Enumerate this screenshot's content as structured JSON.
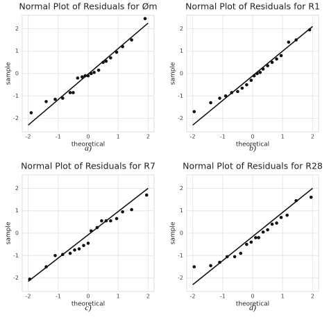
{
  "chart_data": [
    {
      "type": "scatter",
      "title": "Normal Plot of Residuals for Øm",
      "x_label": "theoretical",
      "y_label": "sample",
      "caption": "a)",
      "xlim": [
        -2.2,
        2.2
      ],
      "ylim": [
        -2.6,
        2.6
      ],
      "xticks": [
        -2,
        -1,
        0,
        1,
        2
      ],
      "yticks": [
        -2,
        -1,
        0,
        1,
        2
      ],
      "grid": true,
      "color": "#111111",
      "x": [
        -1.9,
        -1.4,
        -1.1,
        -0.85,
        -0.6,
        -0.5,
        -0.35,
        -0.2,
        -0.1,
        0.0,
        0.1,
        0.2,
        0.35,
        0.5,
        0.6,
        0.75,
        0.95,
        1.15,
        1.45,
        1.9
      ],
      "values": [
        -1.75,
        -1.25,
        -1.15,
        -1.1,
        -0.85,
        -0.85,
        -0.2,
        -0.15,
        -0.1,
        -0.1,
        0.0,
        0.05,
        0.15,
        0.5,
        0.55,
        0.7,
        0.95,
        1.2,
        1.5,
        2.45
      ],
      "fit_line": {
        "x": [
          -2.0,
          2.0
        ],
        "y": [
          -2.3,
          2.25
        ]
      }
    },
    {
      "type": "scatter",
      "title": "Normal Plot of Residuals for R1",
      "x_label": "theoretical",
      "y_label": "sample",
      "caption": "b)",
      "xlim": [
        -2.2,
        2.2
      ],
      "ylim": [
        -2.6,
        2.6
      ],
      "xticks": [
        -2,
        -1,
        0,
        1,
        2
      ],
      "yticks": [
        -2,
        -1,
        0,
        1,
        2
      ],
      "grid": true,
      "color": "#111111",
      "x": [
        -1.95,
        -1.4,
        -1.1,
        -0.9,
        -0.7,
        -0.5,
        -0.35,
        -0.2,
        -0.05,
        0.05,
        0.15,
        0.25,
        0.35,
        0.5,
        0.65,
        0.8,
        0.95,
        1.2,
        1.45,
        1.9
      ],
      "values": [
        -1.7,
        -1.3,
        -1.1,
        -1.0,
        -0.85,
        -0.8,
        -0.65,
        -0.5,
        -0.3,
        -0.1,
        0.0,
        0.05,
        0.2,
        0.35,
        0.5,
        0.65,
        0.8,
        1.4,
        1.5,
        1.95
      ],
      "fit_line": {
        "x": [
          -2.0,
          2.0
        ],
        "y": [
          -2.3,
          2.1
        ]
      }
    },
    {
      "type": "scatter",
      "title": "Normal Plot of Residuals for R7",
      "x_label": "theoretical",
      "y_label": "sample",
      "caption": "c)",
      "xlim": [
        -2.2,
        2.2
      ],
      "ylim": [
        -2.6,
        2.6
      ],
      "xticks": [
        -2,
        -1,
        0,
        1,
        2
      ],
      "yticks": [
        -2,
        -1,
        0,
        1,
        2
      ],
      "grid": true,
      "color": "#111111",
      "x": [
        -1.95,
        -1.4,
        -1.1,
        -0.85,
        -0.6,
        -0.45,
        -0.3,
        -0.15,
        0.0,
        0.1,
        0.3,
        0.45,
        0.6,
        0.75,
        0.95,
        1.15,
        1.45,
        1.95
      ],
      "values": [
        -2.05,
        -1.5,
        -1.0,
        -0.95,
        -0.9,
        -0.75,
        -0.7,
        -0.55,
        -0.45,
        0.1,
        0.25,
        0.55,
        0.55,
        0.55,
        0.65,
        0.95,
        1.05,
        1.7
      ],
      "fit_line": {
        "x": [
          -2.0,
          2.0
        ],
        "y": [
          -2.15,
          2.0
        ]
      }
    },
    {
      "type": "scatter",
      "title": "Normal Plot of Residuals for R28",
      "x_label": "theoretical",
      "y_label": "sample",
      "caption": "d)",
      "xlim": [
        -2.2,
        2.2
      ],
      "ylim": [
        -2.6,
        2.6
      ],
      "xticks": [
        -2,
        -1,
        0,
        1,
        2
      ],
      "yticks": [
        -2,
        -1,
        0,
        1,
        2
      ],
      "grid": true,
      "color": "#111111",
      "x": [
        -1.95,
        -1.4,
        -1.1,
        -0.85,
        -0.6,
        -0.4,
        -0.2,
        -0.05,
        0.1,
        0.2,
        0.35,
        0.5,
        0.65,
        0.8,
        0.95,
        1.15,
        1.45,
        1.95
      ],
      "values": [
        -1.5,
        -1.45,
        -1.3,
        -1.05,
        -1.05,
        -0.9,
        -0.5,
        -0.4,
        -0.2,
        -0.2,
        0.05,
        0.15,
        0.4,
        0.45,
        0.7,
        0.8,
        1.45,
        1.6
      ],
      "fit_line": {
        "x": [
          -2.0,
          2.0
        ],
        "y": [
          -2.3,
          2.0
        ]
      }
    }
  ]
}
